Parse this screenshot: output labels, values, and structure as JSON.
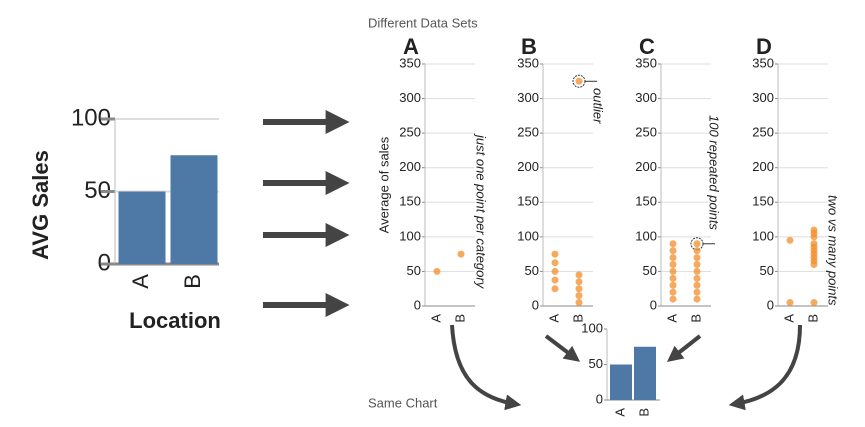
{
  "captions": {
    "top": "Different Data Sets",
    "bottom": "Same Chart"
  },
  "chart_data": [
    {
      "type": "bar",
      "ylabel": "AVG Sales",
      "xlabel": "Location",
      "categories": [
        "A",
        "B"
      ],
      "values": [
        50,
        75
      ],
      "color": "#4e79a7",
      "ylim": [
        0,
        100
      ],
      "yticks": [
        0,
        50,
        100
      ],
      "grid": true
    },
    {
      "type": "strip",
      "title": "A",
      "ylabel": "Average of sales",
      "annotation": "just one point per category",
      "categories": [
        "A",
        "B"
      ],
      "values": [
        [
          50
        ],
        [
          75
        ]
      ],
      "color": "#f28e2b",
      "ylim": [
        0,
        350
      ],
      "yticks": [
        0,
        50,
        100,
        150,
        200,
        250,
        300,
        350
      ],
      "grid": true
    },
    {
      "type": "strip",
      "title": "B",
      "annotation": "outlier",
      "categories": [
        "A",
        "B"
      ],
      "values": [
        [
          75,
          62.5,
          50,
          37.5,
          25
        ],
        [
          45,
          35,
          25,
          15,
          5,
          325
        ]
      ],
      "color": "#f28e2b",
      "ylim": [
        0,
        350
      ],
      "yticks": [
        0,
        50,
        100,
        150,
        200,
        250,
        300,
        350
      ],
      "grid": true
    },
    {
      "type": "strip",
      "title": "C",
      "annotation": "100 repeated points",
      "categories": [
        "A",
        "B"
      ],
      "values": [
        [
          90,
          80,
          70,
          60,
          50,
          40,
          30,
          20,
          10
        ],
        [
          90,
          80,
          70,
          60,
          50,
          40,
          30,
          20,
          10
        ]
      ],
      "color": "#f28e2b",
      "ylim": [
        0,
        350
      ],
      "yticks": [
        0,
        50,
        100,
        150,
        200,
        250,
        300,
        350
      ],
      "grid": true
    },
    {
      "type": "strip",
      "title": "D",
      "annotation": "two vs many points",
      "categories": [
        "A",
        "B"
      ],
      "values": [
        [
          95,
          5
        ],
        [
          110,
          105,
          100,
          90,
          85,
          80,
          75,
          70,
          65,
          60,
          5
        ]
      ],
      "color": "#f28e2b",
      "ylim": [
        0,
        350
      ],
      "yticks": [
        0,
        50,
        100,
        150,
        200,
        250,
        300,
        350
      ],
      "grid": true
    },
    {
      "type": "bar",
      "categories": [
        "A",
        "B"
      ],
      "values": [
        50,
        75
      ],
      "color": "#4e79a7",
      "ylim": [
        0,
        100
      ],
      "yticks": [
        0,
        50,
        100
      ],
      "grid": false
    }
  ]
}
